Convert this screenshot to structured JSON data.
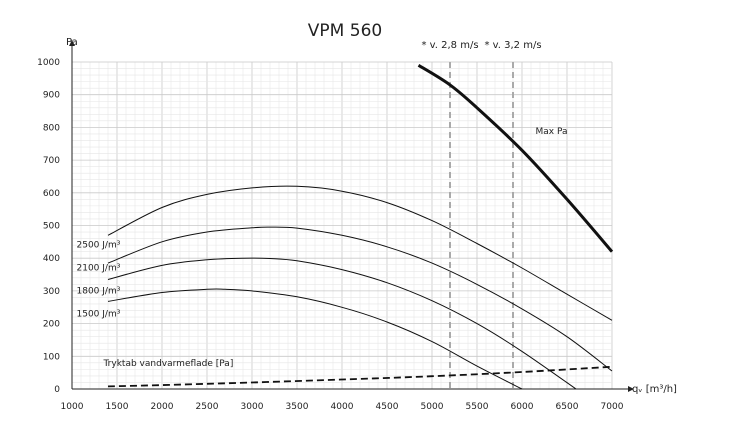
{
  "chart_data": {
    "type": "line",
    "title": "VPM 560",
    "ylabel": "Pa",
    "xlabel": "qᵥ [m³/h]",
    "xlim": [
      1000,
      7000
    ],
    "ylim": [
      0,
      1000
    ],
    "x_ticks": [
      1000,
      1500,
      2000,
      2500,
      3000,
      3500,
      4000,
      4500,
      5000,
      5500,
      6000,
      6500,
      7000
    ],
    "y_ticks": [
      0,
      100,
      200,
      300,
      400,
      500,
      600,
      700,
      800,
      900,
      1000
    ],
    "grid": true,
    "velocity_markers": [
      {
        "label": "* v. 2,8 m/s",
        "x": 5200
      },
      {
        "label": "* v. 3,2 m/s",
        "x": 5900
      }
    ],
    "series": [
      {
        "name": "Max Pa",
        "style": "thick",
        "points": [
          [
            4850,
            990
          ],
          [
            5200,
            930
          ],
          [
            5500,
            860
          ],
          [
            6000,
            730
          ],
          [
            6500,
            580
          ],
          [
            7000,
            420
          ]
        ]
      },
      {
        "name": "2500 J/m³",
        "style": "thin",
        "points": [
          [
            1400,
            470
          ],
          [
            2000,
            555
          ],
          [
            2500,
            595
          ],
          [
            3000,
            615
          ],
          [
            3500,
            620
          ],
          [
            4000,
            605
          ],
          [
            4500,
            570
          ],
          [
            5000,
            515
          ],
          [
            5500,
            445
          ],
          [
            6000,
            370
          ],
          [
            6500,
            290
          ],
          [
            7000,
            210
          ]
        ]
      },
      {
        "name": "2100 J/m³",
        "style": "thin",
        "points": [
          [
            1400,
            385
          ],
          [
            2000,
            450
          ],
          [
            2500,
            480
          ],
          [
            3000,
            493
          ],
          [
            3200,
            495
          ],
          [
            3500,
            492
          ],
          [
            4000,
            470
          ],
          [
            4500,
            435
          ],
          [
            5000,
            385
          ],
          [
            5500,
            320
          ],
          [
            6000,
            245
          ],
          [
            6500,
            160
          ],
          [
            7000,
            55
          ]
        ]
      },
      {
        "name": "1800 J/m³",
        "style": "thin",
        "points": [
          [
            1400,
            335
          ],
          [
            2000,
            378
          ],
          [
            2500,
            395
          ],
          [
            2900,
            400
          ],
          [
            3200,
            399
          ],
          [
            3500,
            392
          ],
          [
            4000,
            365
          ],
          [
            4500,
            325
          ],
          [
            5000,
            270
          ],
          [
            5500,
            200
          ],
          [
            6000,
            115
          ],
          [
            6600,
            0
          ]
        ]
      },
      {
        "name": "1500 J/m³",
        "style": "thin",
        "points": [
          [
            1400,
            268
          ],
          [
            2000,
            295
          ],
          [
            2500,
            305
          ],
          [
            2700,
            305
          ],
          [
            3000,
            300
          ],
          [
            3500,
            282
          ],
          [
            4000,
            250
          ],
          [
            4500,
            205
          ],
          [
            5000,
            145
          ],
          [
            5500,
            70
          ],
          [
            6000,
            0
          ]
        ]
      },
      {
        "name": "Tryktab vandvarmeflade [Pa]",
        "style": "dashed",
        "points": [
          [
            1400,
            8
          ],
          [
            2000,
            12
          ],
          [
            3000,
            20
          ],
          [
            4000,
            29
          ],
          [
            5000,
            39
          ],
          [
            6000,
            52
          ],
          [
            7000,
            68
          ]
        ]
      }
    ],
    "annotations": [
      {
        "text": "Max Pa",
        "x": 6150,
        "y": 780
      },
      {
        "text": "2500 J/m³",
        "x": 1050,
        "y": 432
      },
      {
        "text": "2100 J/m³",
        "x": 1050,
        "y": 362
      },
      {
        "text": "1800 J/m³",
        "x": 1050,
        "y": 292
      },
      {
        "text": "1500 J/m³",
        "x": 1050,
        "y": 222
      },
      {
        "text": "Tryktab vandvarmeflade [Pa]",
        "x": 1350,
        "y": 70
      }
    ]
  }
}
